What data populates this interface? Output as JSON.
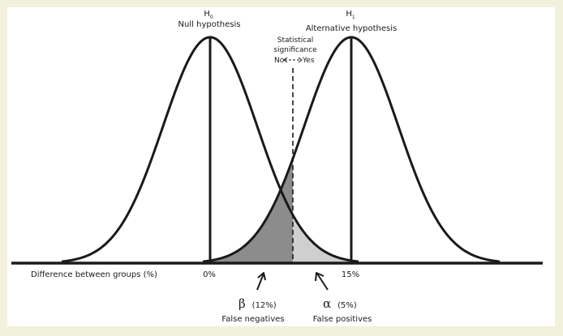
{
  "null_hypothesis": {
    "symbol": "H",
    "subscript": "0",
    "label": "Null hypothesis"
  },
  "alt_hypothesis": {
    "symbol": "H",
    "subscript": "1",
    "label": "Alternative hypothesis"
  },
  "significance": {
    "line1": "Statistical",
    "line2": "significance",
    "no": "No",
    "yes": "Yes"
  },
  "axis": {
    "label": "Difference between groups (%)",
    "tick_0": "0%",
    "tick_15": "15%"
  },
  "beta": {
    "symbol": "β",
    "value": "(12%)",
    "label": "False negatives",
    "fill": "#8c8c8c"
  },
  "alpha": {
    "symbol": "α",
    "value": "(5%)",
    "label": "False positives",
    "fill": "#cfcfcf"
  },
  "colors": {
    "background": "#f2f1dc",
    "ink": "#1a1a1a"
  }
}
